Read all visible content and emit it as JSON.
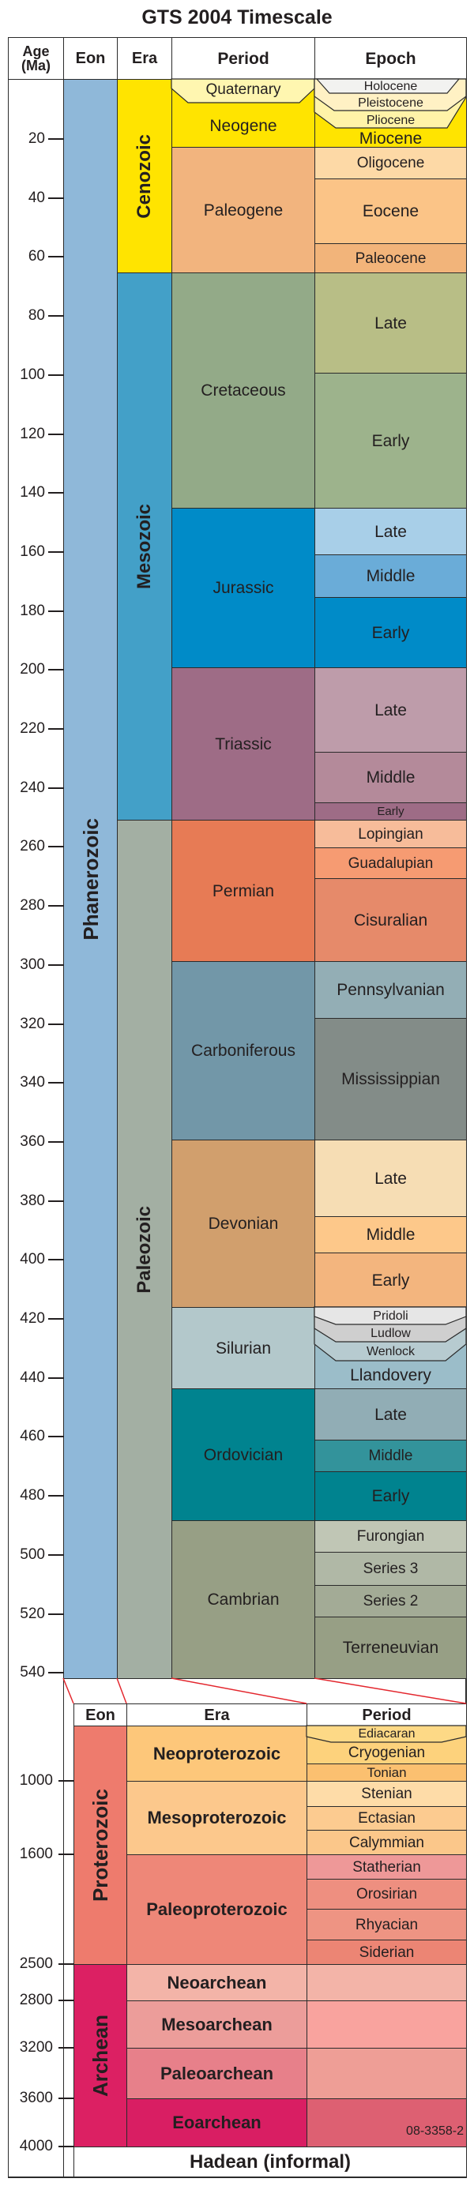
{
  "title": "GTS 2004 Timescale",
  "upper": {
    "headers": {
      "age": "Age",
      "age_unit": "(Ma)",
      "eon": "Eon",
      "era": "Era",
      "period": "Period",
      "epoch": "Epoch"
    },
    "ticks": [
      "20",
      "40",
      "60",
      "80",
      "100",
      "120",
      "140",
      "160",
      "180",
      "200",
      "220",
      "240",
      "260",
      "280",
      "300",
      "320",
      "340",
      "360",
      "380",
      "400",
      "420",
      "440",
      "460",
      "480",
      "500",
      "520",
      "540"
    ],
    "eons": [
      {
        "name": "Phanerozoic",
        "color": "#8fb8d9"
      }
    ],
    "eras": [
      {
        "name": "Cenozoic",
        "color": "#ffe400"
      },
      {
        "name": "Mesozoic",
        "color": "#43a0c8"
      },
      {
        "name": "Paleozoic",
        "color": "#a3afa3"
      }
    ],
    "periods": [
      {
        "name": "Quaternary",
        "color": "#fff6b0",
        "epochs": [
          {
            "name": "Holocene",
            "color": "#f2f2f0"
          },
          {
            "name": "Pleistocene",
            "color": "#fff1c4"
          }
        ]
      },
      {
        "name": "Neogene",
        "color": "#ffe400",
        "epochs": [
          {
            "name": "Pliocene",
            "color": "#fff3a8"
          },
          {
            "name": "Miocene",
            "color": "#ffe400"
          }
        ]
      },
      {
        "name": "Paleogene",
        "color": "#f2b47e",
        "epochs": [
          {
            "name": "Oligocene",
            "color": "#fdd9a6"
          },
          {
            "name": "Eocene",
            "color": "#fbc487"
          },
          {
            "name": "Paleocene",
            "color": "#f2b47a"
          }
        ]
      },
      {
        "name": "Cretaceous",
        "color": "#93aa88",
        "epochs": [
          {
            "name": "Late",
            "color": "#b8be86"
          },
          {
            "name": "Early",
            "color": "#9db38c"
          }
        ]
      },
      {
        "name": "Jurassic",
        "color": "#008bc8",
        "epochs": [
          {
            "name": "Late",
            "color": "#a8cfe8"
          },
          {
            "name": "Middle",
            "color": "#6aacd8"
          },
          {
            "name": "Early",
            "color": "#008bc8"
          }
        ]
      },
      {
        "name": "Triassic",
        "color": "#9e6c86",
        "epochs": [
          {
            "name": "Late",
            "color": "#be9caa"
          },
          {
            "name": "Middle",
            "color": "#b48a9a"
          },
          {
            "name": "Early",
            "color": "#9e6c86"
          }
        ]
      },
      {
        "name": "Permian",
        "color": "#e77b55",
        "epochs": [
          {
            "name": "Lopingian",
            "color": "#f7bc9a"
          },
          {
            "name": "Guadalupian",
            "color": "#f69b72"
          },
          {
            "name": "Cisuralian",
            "color": "#e68a6a"
          }
        ]
      },
      {
        "name": "Carboniferous",
        "color": "#7297a8",
        "epochs": [
          {
            "name": "Pennsylvanian",
            "color": "#93aeb5"
          },
          {
            "name": "Mississippian",
            "color": "#838c88"
          }
        ]
      },
      {
        "name": "Devonian",
        "color": "#d19f6d",
        "epochs": [
          {
            "name": "Late",
            "color": "#f6ddb4"
          },
          {
            "name": "Middle",
            "color": "#fdc88a"
          },
          {
            "name": "Early",
            "color": "#f3b57e"
          }
        ]
      },
      {
        "name": "Silurian",
        "color": "#b3c8cb",
        "epochs": [
          {
            "name": "Pridoli",
            "color": "#e6e6e6"
          },
          {
            "name": "Ludlow",
            "color": "#cfcfcf"
          },
          {
            "name": "Wenlock",
            "color": "#b7cbd0"
          },
          {
            "name": "Llandovery",
            "color": "#9bbdc9"
          }
        ]
      },
      {
        "name": "Ordovician",
        "color": "#00838f",
        "epochs": [
          {
            "name": "Late",
            "color": "#91adb5"
          },
          {
            "name": "Middle",
            "color": "#33939b"
          },
          {
            "name": "Early",
            "color": "#00838f"
          }
        ]
      },
      {
        "name": "Cambrian",
        "color": "#979f85",
        "epochs": [
          {
            "name": "Furongian",
            "color": "#c0c6b5"
          },
          {
            "name": "Series 3",
            "color": "#b0b8a6"
          },
          {
            "name": "Series 2",
            "color": "#a3ab96"
          },
          {
            "name": "Terreneuvian",
            "color": "#979f85"
          }
        ]
      }
    ]
  },
  "lower": {
    "headers": {
      "eon": "Eon",
      "era": "Era",
      "period": "Period"
    },
    "ticks": [
      "1000",
      "1600",
      "2500",
      "2800",
      "3200",
      "3600",
      "4000"
    ],
    "eons": [
      {
        "name": "Proterozoic",
        "color": "#ee7b6d"
      },
      {
        "name": "Archean",
        "color": "#dc2063"
      }
    ],
    "eras": [
      {
        "name": "Neoproterozoic",
        "color": "#fdc77a",
        "periods": [
          {
            "name": "Ediacaran",
            "color": "#fdd986"
          },
          {
            "name": "Cryogenian",
            "color": "#fdd27c"
          },
          {
            "name": "Tonian",
            "color": "#fbc070"
          }
        ]
      },
      {
        "name": "Mesoproterozoic",
        "color": "#fcc88c",
        "periods": [
          {
            "name": "Stenian",
            "color": "#fedca8"
          },
          {
            "name": "Ectasian",
            "color": "#fccb90"
          },
          {
            "name": "Calymmian",
            "color": "#fbc78a"
          }
        ]
      },
      {
        "name": "Paleoproterozoic",
        "color": "#ee8778",
        "periods": [
          {
            "name": "Statherian",
            "color": "#ee9898"
          },
          {
            "name": "Orosirian",
            "color": "#ee8f80"
          },
          {
            "name": "Rhyacian",
            "color": "#ee9483"
          },
          {
            "name": "Siderian",
            "color": "#ec8574"
          }
        ]
      },
      {
        "name": "Neoarchean",
        "color": "#f3b4a8",
        "period_color": "#f3b4a8"
      },
      {
        "name": "Mesoarchean",
        "color": "#ec9d9a",
        "period_color": "#f9a39e"
      },
      {
        "name": "Paleoarchean",
        "color": "#e7808a",
        "period_color": "#ee9e96"
      },
      {
        "name": "Eoarchean",
        "color": "#d91e63",
        "period_color": "#dd6072"
      }
    ],
    "hadean": "Hadean (informal)",
    "figure_code": "08-3358-2",
    "connector_color": "#e3262d"
  }
}
